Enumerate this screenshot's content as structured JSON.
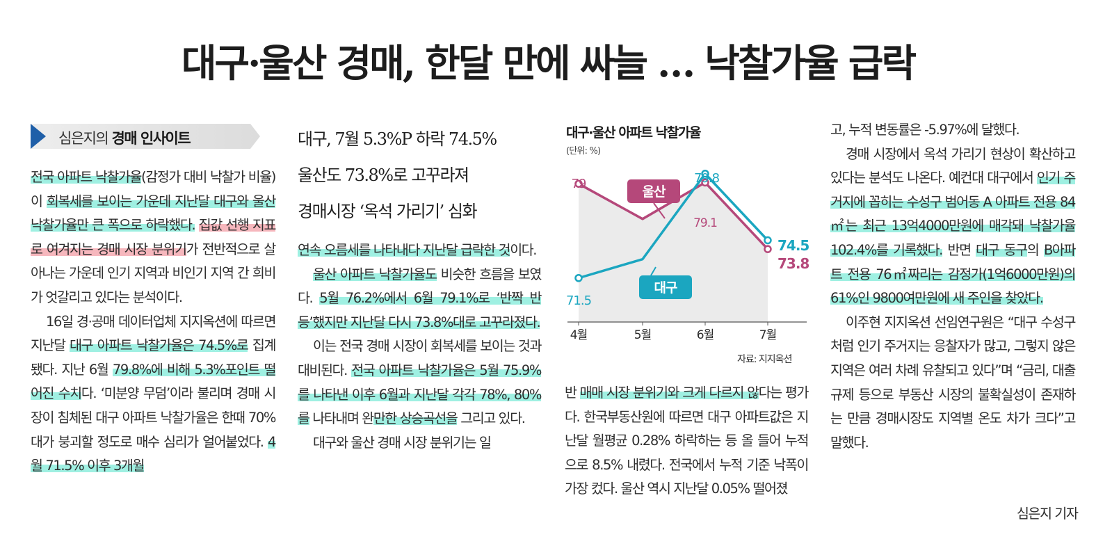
{
  "headline": "대구·울산 경매, 한달 만에 싸늘 … 낙찰가율 급락",
  "column_tag": {
    "prefix": "심은지의 ",
    "name": "경매 인사이트"
  },
  "subheads": [
    "대구, 7월 5.3%P 하락 74.5%",
    "울산도 73.8%로 고꾸라져",
    "경매시장 ‘옥석 가리기’ 심화"
  ],
  "col1": {
    "p1": {
      "a": "전국 아파트 낙찰가율",
      "b": "(감정가 대비 낙찰가 비율)이 ",
      "c": "회복세를 보이는 가운데 지난달 대구와 울산 낙찰가율만 큰 폭으로 하락했다.",
      "d": " ",
      "e": "집값 선행 지표로 여겨지는 경매 시장 분위기",
      "f": "가 전반적으로 살아나는 가운데 인기 지역과 비인기 지역 간 희비가 엇갈리고 있다는 분석이다."
    },
    "p2": {
      "a": "16일 경·공매 데이터업체 지지옥션에 따르면 지난달 ",
      "b": "대구 아파트 낙찰가율은 74.5%로",
      "c": " 집계됐다. 지난 6월 ",
      "d": "79.8%에 비해 5.3%포인트 떨어진 수치",
      "e": "다. ‘미분양 무덤’이라 불리며 경매 시장이 침체된 대구 아파트 낙찰가율은 한때 70%대가 붕괴할 정도로 매수 심리가 얼어붙었다. ",
      "f": "4월 71.5% 이후 3개월"
    }
  },
  "col2": {
    "p1": {
      "a": "연속 오름세를 나타내다 지난달 급락한 것",
      "b": "이다."
    },
    "p2": {
      "a": "울산 아파트 낙찰가율도",
      "b": " 비슷한 흐름을 보였다. ",
      "c": "5월 76.2%에서 6월 79.1%로 ‘반짝 반등’했지만 지난달 다시 73.8%대로 고꾸라졌다."
    },
    "p3": {
      "a": "이는 전국 경매 시장이 회복세를 보이는 것과 대비된다. ",
      "b": "전국 아파트 낙찰가율은 5월 75.9%를 나타낸 이후 6월과 지난달 각각 78%, 80%를",
      "c": " 나타내며 완",
      "d": "만한 상승곡선을",
      "e": " 그리고 있다."
    },
    "p4": "대구와 울산 경매 시장 분위기는 일"
  },
  "col3": {
    "p1": {
      "a": "반 ",
      "b": "매매 시장 분위기와 크게 다르지 않",
      "c": "다는 평가다. 한국부동산원에 따르면 대구 아파트값은 지난달 월평균 0.28% 하락하는 등 올 들어 누적으로 8.5% 내렸다. 전국에서 누적 기준 낙폭이 가장 컸다. 울산 역시 지난달 0.05% 떨어졌"
    }
  },
  "col4": {
    "p1": "고, 누적 변동률은 -5.97%에 달했다.",
    "p2": {
      "a": "경매 시장에서 옥석 가리기 현상이 확산하고 있다는 분석도 나온다. 예컨대 대구에서 ",
      "b": "인기 주거지에 꼽히는 수성구 범어동 A 아파트 전용 84㎡는 최근 13억4000만원에 매각돼 낙찰가율 102.4%를 기록했다.",
      "c": " 반면 ",
      "d": "대구 동구",
      "e": "의 ",
      "f": "B아파트 전용 76㎡짜리는 감정가(1억6000만원)의 61%인 9800여만원에 새 주인을 찾았다."
    },
    "p3": "이주현 지지옥션 선임연구원은 “대구 수성구처럼 인기 주거지는 응찰자가 많고, 그렇지 않은 지역은 여러 차례 유찰되고 있다”며 “금리, 대출 규제 등으로 부동산 시장의 불확실성이 존재하는 만큼 경매시장도 지역별 온도 차가 크다”고 말했다.",
    "byline": "심은지 기자"
  },
  "chart_data": {
    "type": "line",
    "title": "대구·울산 아파트 낙찰가율",
    "unit": "(단위: %)",
    "source": "자료: 지지옥션",
    "categories": [
      "4월",
      "5월",
      "6월",
      "7월"
    ],
    "ylim": [
      68,
      82
    ],
    "series": [
      {
        "name": "울산",
        "values": [
          79,
          76.2,
          79.1,
          73.8
        ],
        "labels": [
          "79",
          "",
          "79.1",
          "73.8"
        ],
        "color": "#b5487a"
      },
      {
        "name": "대구",
        "values": [
          71.5,
          73.0,
          79.8,
          74.5
        ],
        "labels": [
          "71.5",
          "",
          "79.8",
          "74.5"
        ],
        "color": "#1ba6c0"
      }
    ]
  }
}
